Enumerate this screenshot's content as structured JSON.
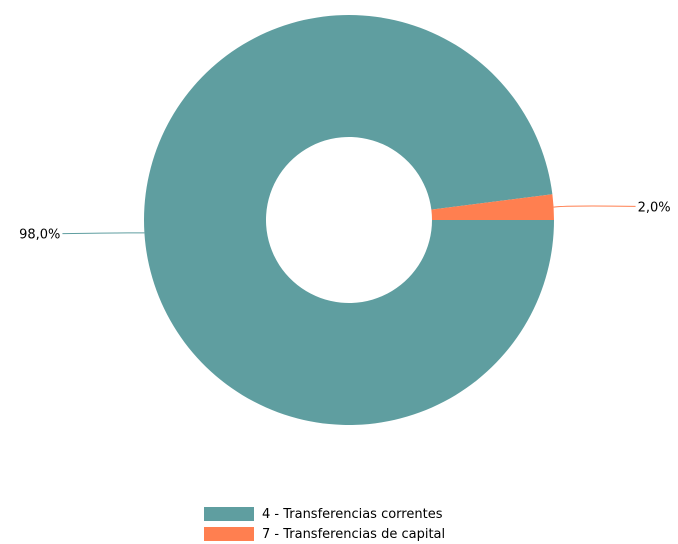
{
  "chart_data": {
    "type": "pie",
    "variant": "donut",
    "categories": [
      "4 - Transferencias correntes",
      "7 - Transferencias de capital"
    ],
    "values": [
      98.0,
      2.0
    ],
    "value_labels": [
      "98,0%",
      "2,0%"
    ],
    "colors": [
      "#5f9ea0",
      "#ff7f50"
    ],
    "title": "",
    "legend_position": "bottom"
  }
}
